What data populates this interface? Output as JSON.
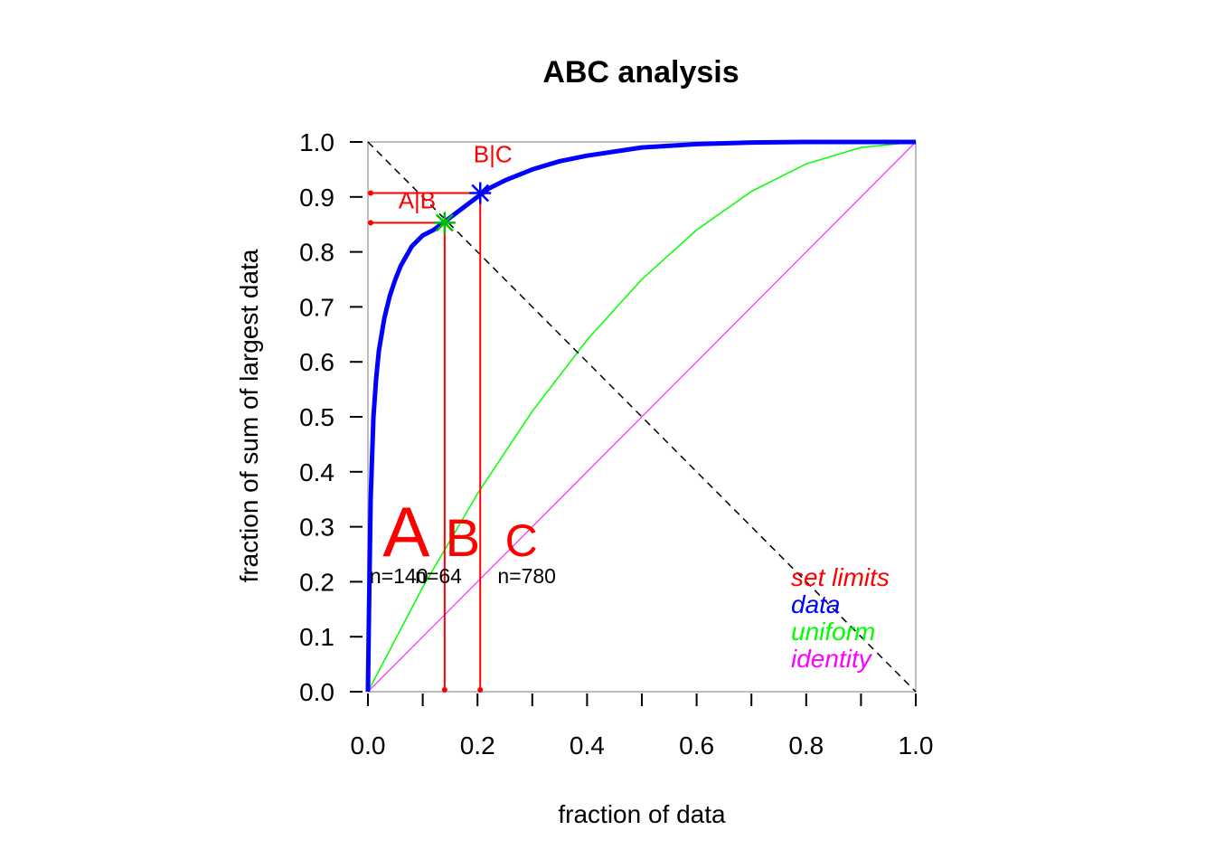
{
  "chart_data": {
    "type": "line",
    "title": "ABC analysis",
    "xlabel": "fraction of data",
    "ylabel": "fraction of sum of largest data",
    "xlim": [
      0,
      1
    ],
    "ylim": [
      0,
      1
    ],
    "x_ticks": [
      "0.0",
      "0.2",
      "0.4",
      "0.6",
      "0.8",
      "1.0"
    ],
    "y_ticks": [
      "0.0",
      "0.1",
      "0.2",
      "0.3",
      "0.4",
      "0.5",
      "0.6",
      "0.7",
      "0.8",
      "0.9",
      "1.0"
    ],
    "grid": false,
    "legend_position": "bottom-right",
    "series": [
      {
        "name": "data",
        "color": "#0000ff",
        "x": [
          0,
          0.002,
          0.005,
          0.01,
          0.015,
          0.02,
          0.03,
          0.04,
          0.05,
          0.06,
          0.08,
          0.1,
          0.12,
          0.14,
          0.16,
          0.18,
          0.2,
          0.22,
          0.25,
          0.3,
          0.35,
          0.4,
          0.5,
          0.6,
          0.7,
          0.8,
          0.9,
          1.0
        ],
        "y": [
          0,
          0.15,
          0.35,
          0.5,
          0.57,
          0.62,
          0.68,
          0.72,
          0.75,
          0.775,
          0.81,
          0.83,
          0.84,
          0.855,
          0.87,
          0.885,
          0.9,
          0.915,
          0.93,
          0.95,
          0.965,
          0.975,
          0.99,
          0.996,
          0.999,
          1.0,
          1.0,
          1.0
        ],
        "width": 5
      },
      {
        "name": "uniform",
        "color": "#00ff00",
        "x": [
          0,
          0.1,
          0.2,
          0.3,
          0.4,
          0.5,
          0.6,
          0.7,
          0.8,
          0.9,
          1.0
        ],
        "y": [
          0,
          0.19,
          0.36,
          0.51,
          0.64,
          0.75,
          0.84,
          0.91,
          0.96,
          0.99,
          1.0
        ],
        "width": 1.5
      },
      {
        "name": "identity",
        "color": "#ff00ff",
        "x": [
          0,
          1
        ],
        "y": [
          0,
          1
        ],
        "width": 1
      }
    ],
    "reference_line": {
      "x": [
        0,
        1
      ],
      "y": [
        1,
        0
      ],
      "color": "#000000",
      "dashed": true
    },
    "limits": [
      {
        "label": "A|B",
        "x": 0.14,
        "y": 0.853,
        "marker_color": "#00c000",
        "line_color": "#ff0000"
      },
      {
        "label": "B|C",
        "x": 0.205,
        "y": 0.907,
        "marker_color": "#0000ff",
        "line_color": "#ff0000"
      }
    ],
    "classes": [
      {
        "label": "A",
        "count": "n=140",
        "x": 0.07,
        "size": 78
      },
      {
        "label": "B",
        "count": "n=64",
        "x": 0.173,
        "size": 58
      },
      {
        "label": "C",
        "count": "n=780",
        "x": 0.28,
        "size": 50
      }
    ],
    "legend": [
      {
        "label": "set limits",
        "color": "#ff0000"
      },
      {
        "label": "data",
        "color": "#0000ff"
      },
      {
        "label": "uniform",
        "color": "#00ff00"
      },
      {
        "label": "identity",
        "color": "#ff00ff"
      }
    ]
  }
}
